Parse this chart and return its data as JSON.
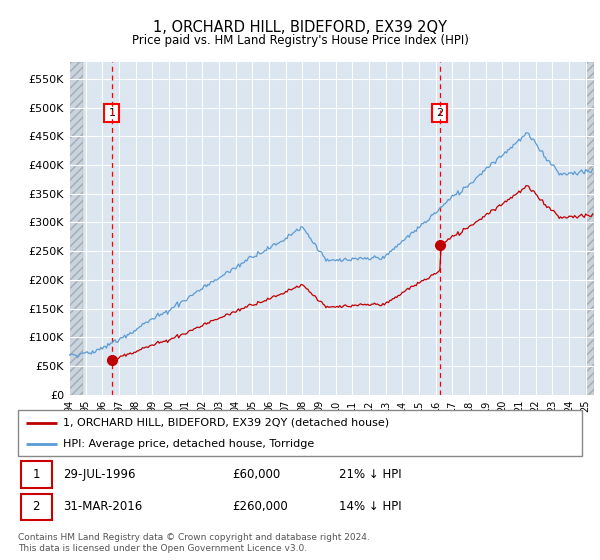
{
  "title": "1, ORCHARD HILL, BIDEFORD, EX39 2QY",
  "subtitle": "Price paid vs. HM Land Registry's House Price Index (HPI)",
  "ylim": [
    0,
    580000
  ],
  "yticks": [
    0,
    50000,
    100000,
    150000,
    200000,
    250000,
    300000,
    350000,
    400000,
    450000,
    500000,
    550000
  ],
  "ytick_labels": [
    "£0",
    "£50K",
    "£100K",
    "£150K",
    "£200K",
    "£250K",
    "£300K",
    "£350K",
    "£400K",
    "£450K",
    "£500K",
    "£550K"
  ],
  "xlim_start": 1994.0,
  "xlim_end": 2025.5,
  "sale1_date": 1996.57,
  "sale1_price": 60000,
  "sale2_date": 2016.25,
  "sale2_price": 260000,
  "hpi_line_color": "#5b9bd5",
  "price_line_color": "#c00000",
  "sale_marker_color": "#c00000",
  "legend_line1": "1, ORCHARD HILL, BIDEFORD, EX39 2QY (detached house)",
  "legend_line2": "HPI: Average price, detached house, Torridge",
  "table_row1": [
    "1",
    "29-JUL-1996",
    "£60,000",
    "21% ↓ HPI"
  ],
  "table_row2": [
    "2",
    "31-MAR-2016",
    "£260,000",
    "14% ↓ HPI"
  ],
  "footnote": "Contains HM Land Registry data © Crown copyright and database right 2024.\nThis data is licensed under the Open Government Licence v3.0.",
  "bg_color": "#dce6f1",
  "grid_color": "#ffffff",
  "vline_color": "#ff0000",
  "box_color": "#ff0000",
  "hatch_bg": "#c8d4e0"
}
